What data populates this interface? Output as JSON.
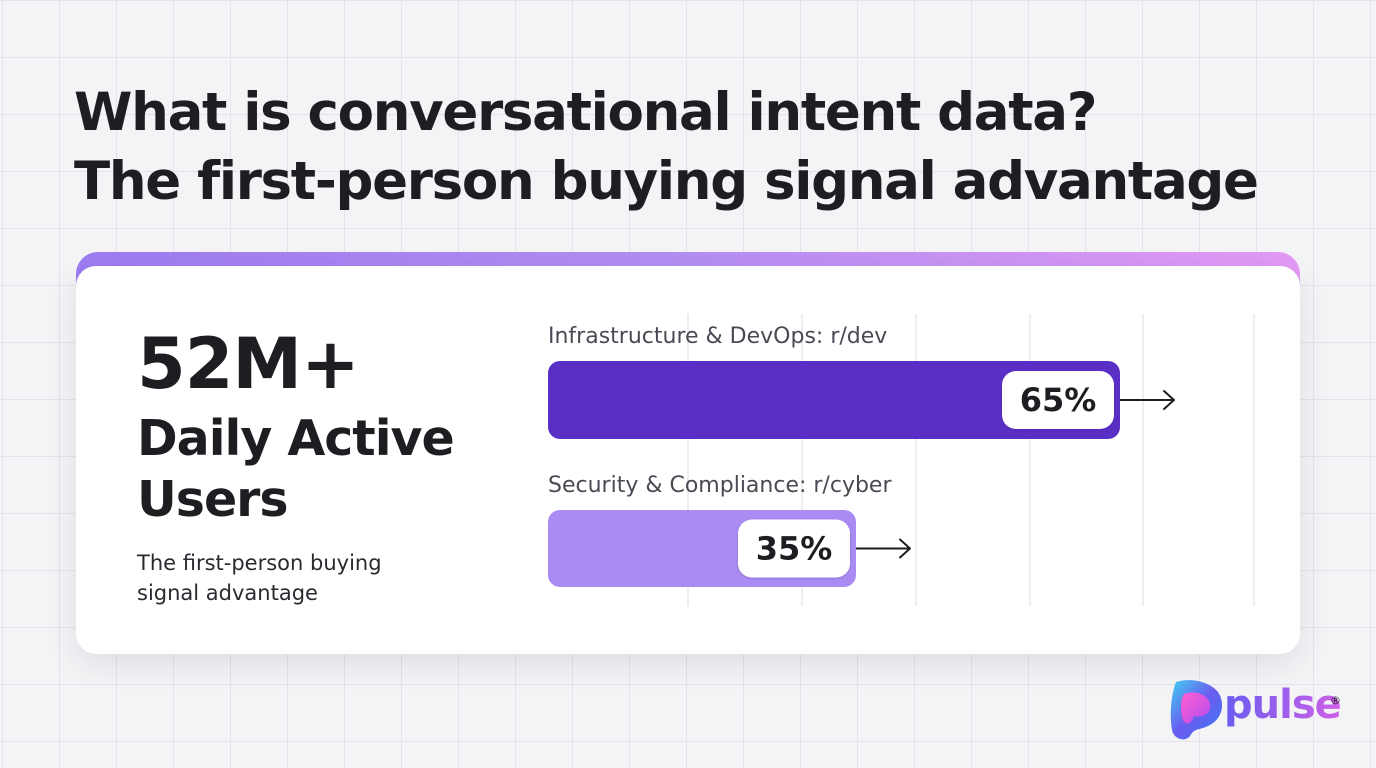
{
  "headline": {
    "line1": "What is conversational intent data?",
    "line2": "The first-person buying signal advantage"
  },
  "stat": {
    "value": "52M+",
    "label": "Daily Active Users",
    "subtitle": "The first-person buying signal advantage"
  },
  "chart_data": {
    "type": "bar",
    "orientation": "horizontal",
    "categories": [
      "Infrastructure & DevOps: r/dev",
      "Security & Compliance: r/cyber"
    ],
    "values": [
      65,
      35
    ],
    "value_labels": [
      "65%",
      "35%"
    ],
    "colors": [
      "#5a2fc6",
      "#a98bf3"
    ],
    "xlim": [
      0,
      100
    ],
    "grid": true
  },
  "logo": {
    "name": "pulse",
    "mark": "registered-mark",
    "icon": "pulse-logo-icon",
    "reg_symbol": "®"
  },
  "colors": {
    "accent_dark": "#5a2fc6",
    "accent_light": "#a98bf3",
    "card_accent_start": "#9d7cf0",
    "card_accent_end": "#e39af5"
  }
}
